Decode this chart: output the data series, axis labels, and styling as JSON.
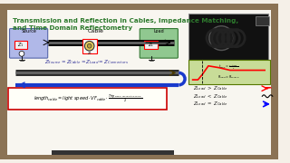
{
  "bg_color": "#f5f0e8",
  "border_color": "#8B7355",
  "title_text": "Transmission and Reflection in Cables, Impedance Matching,",
  "title_text2": "and Time Domain Reflectometry",
  "title_color": "#2d7a2d",
  "whiteboard_color": "#f8f6f0",
  "source_box_color": "#b0b8e8",
  "load_box_color": "#90c890",
  "cable_color": "#1a1a1a",
  "formula_border": "#cc0000",
  "arrow_forward_color": "#4a3a00",
  "arrow_back_color": "#1a3acc",
  "tdr_box_color": "#c8dc98"
}
